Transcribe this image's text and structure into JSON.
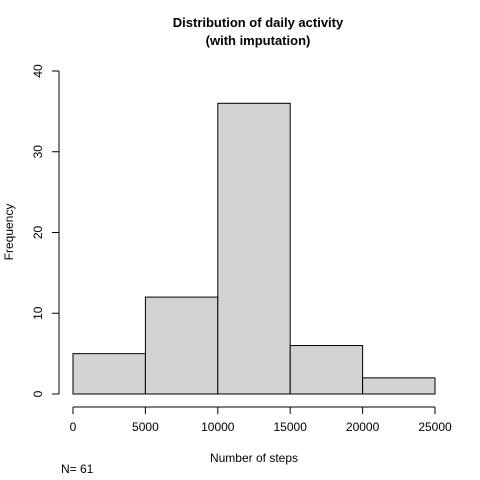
{
  "chart_data": {
    "type": "bar",
    "title_lines": [
      "Distribution of daily activity",
      "(with imputation)"
    ],
    "xlabel": "Number of steps",
    "ylabel": "Frequency",
    "bins": [
      {
        "start": 0,
        "end": 5000,
        "count": 5
      },
      {
        "start": 5000,
        "end": 10000,
        "count": 12
      },
      {
        "start": 10000,
        "end": 15000,
        "count": 36
      },
      {
        "start": 15000,
        "end": 20000,
        "count": 6
      },
      {
        "start": 20000,
        "end": 25000,
        "count": 2
      }
    ],
    "xlim": [
      0,
      25000
    ],
    "ylim": [
      0,
      40
    ],
    "xticks": [
      0,
      5000,
      10000,
      15000,
      20000,
      25000
    ],
    "yticks": [
      0,
      10,
      20,
      30,
      40
    ],
    "bar_color": "#d3d3d3",
    "bar_edge_color": "#000000",
    "grid": false,
    "legend": "none"
  },
  "note": "N= 61"
}
